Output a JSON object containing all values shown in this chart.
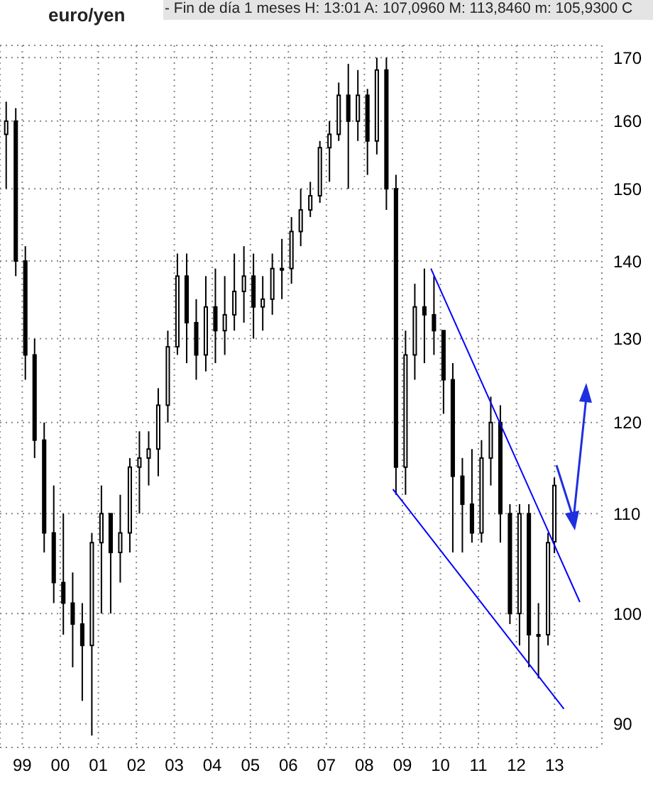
{
  "chart_data": {
    "type": "candlestick",
    "title": "euro/yen",
    "subtitle": "- Fin de día 1 meses H: 13:01 A: 107,0960 M: 113,8460 m: 105,9300 C",
    "log": "y",
    "grid": true,
    "xlim": [
      "1998-06",
      "2014-04"
    ],
    "xticks": [
      {
        "value": "1999",
        "label": "99"
      },
      {
        "value": "2000",
        "label": "00"
      },
      {
        "value": "2001",
        "label": "01"
      },
      {
        "value": "2002",
        "label": "02"
      },
      {
        "value": "2003",
        "label": "03"
      },
      {
        "value": "2004",
        "label": "04"
      },
      {
        "value": "2005",
        "label": "05"
      },
      {
        "value": "2006",
        "label": "06"
      },
      {
        "value": "2007",
        "label": "07"
      },
      {
        "value": "2008",
        "label": "08"
      },
      {
        "value": "2009",
        "label": "09"
      },
      {
        "value": "2010",
        "label": "10"
      },
      {
        "value": "2011",
        "label": "11"
      },
      {
        "value": "2012",
        "label": "12"
      },
      {
        "value": "2013",
        "label": "13"
      }
    ],
    "ylim": [
      88,
      172
    ],
    "yticks": [
      90,
      100,
      110,
      120,
      130,
      140,
      150,
      160,
      170
    ],
    "series": [
      {
        "color": "#000000",
        "x": [
          "1998-08",
          "1998-11",
          "1999-02",
          "1999-05",
          "1999-08",
          "1999-11",
          "2000-02",
          "2000-05",
          "2000-08",
          "2000-11",
          "2001-02",
          "2001-05",
          "2001-08",
          "2001-11",
          "2002-02",
          "2002-05",
          "2002-08",
          "2002-11",
          "2003-02",
          "2003-05",
          "2003-08",
          "2003-11",
          "2004-02",
          "2004-05",
          "2004-08",
          "2004-11",
          "2005-02",
          "2005-05",
          "2005-08",
          "2005-11",
          "2006-02",
          "2006-05",
          "2006-08",
          "2006-11",
          "2007-02",
          "2007-05",
          "2007-08",
          "2007-11",
          "2008-02",
          "2008-05",
          "2008-08",
          "2008-11",
          "2009-02",
          "2009-05",
          "2009-08",
          "2009-11",
          "2010-02",
          "2010-05",
          "2010-08",
          "2010-11",
          "2011-02",
          "2011-05",
          "2011-08",
          "2011-11",
          "2012-02",
          "2012-05",
          "2012-08",
          "2012-11",
          "2013-01"
        ],
        "ohlc": [
          [
            158,
            163,
            150,
            160
          ],
          [
            160,
            162,
            138,
            140
          ],
          [
            140,
            142,
            125,
            128
          ],
          [
            128,
            130,
            116,
            118
          ],
          [
            118,
            120,
            106,
            108
          ],
          [
            108,
            113,
            101,
            103
          ],
          [
            103,
            110,
            98,
            101
          ],
          [
            101,
            104,
            95,
            99
          ],
          [
            99,
            101,
            92,
            97
          ],
          [
            97,
            108,
            89,
            107
          ],
          [
            107,
            113,
            100,
            110
          ],
          [
            110,
            110,
            100,
            106
          ],
          [
            106,
            112,
            103,
            108
          ],
          [
            108,
            116,
            106,
            115
          ],
          [
            115,
            119,
            110,
            116
          ],
          [
            116,
            119,
            113,
            117
          ],
          [
            117,
            124,
            114,
            122
          ],
          [
            122,
            131,
            120,
            129
          ],
          [
            129,
            141,
            128,
            138
          ],
          [
            138,
            141,
            127,
            132
          ],
          [
            132,
            135,
            125,
            128
          ],
          [
            128,
            138,
            126,
            134
          ],
          [
            134,
            139,
            127,
            131
          ],
          [
            131,
            138,
            128,
            133
          ],
          [
            133,
            141,
            131,
            136
          ],
          [
            136,
            142,
            132,
            138
          ],
          [
            138,
            141,
            130,
            134
          ],
          [
            134,
            138,
            131,
            135
          ],
          [
            135,
            141,
            133,
            139
          ],
          [
            139,
            143,
            135,
            139
          ],
          [
            139,
            146,
            137,
            144
          ],
          [
            144,
            150,
            142,
            147
          ],
          [
            147,
            151,
            146,
            149
          ],
          [
            149,
            157,
            148,
            156
          ],
          [
            156,
            160,
            151,
            158
          ],
          [
            158,
            166,
            157,
            164
          ],
          [
            164,
            169,
            150,
            160
          ],
          [
            160,
            168,
            157,
            164
          ],
          [
            164,
            165,
            152,
            157
          ],
          [
            157,
            170,
            155,
            168
          ],
          [
            168,
            170,
            147,
            150
          ],
          [
            150,
            152,
            112,
            115
          ],
          [
            115,
            131,
            112,
            128
          ],
          [
            128,
            137,
            125,
            134
          ],
          [
            134,
            139,
            127,
            133
          ],
          [
            133,
            138,
            128,
            131
          ],
          [
            131,
            131,
            121,
            125
          ],
          [
            125,
            127,
            106,
            114
          ],
          [
            114,
            116,
            106,
            111
          ],
          [
            111,
            117,
            107,
            108
          ],
          [
            108,
            118,
            107,
            116
          ],
          [
            116,
            123,
            113,
            120
          ],
          [
            120,
            122,
            107,
            110
          ],
          [
            110,
            111,
            99,
            100
          ],
          [
            100,
            111,
            97,
            110
          ],
          [
            110,
            111,
            95,
            98
          ],
          [
            98,
            101,
            94,
            98
          ],
          [
            98,
            108,
            97,
            107
          ],
          [
            107.096,
            113.846,
            105.93,
            113
          ]
        ]
      },
      {
        "type": "line",
        "color": "#0000ff",
        "x": [
          "2009-10",
          "2013-09"
        ],
        "values": [
          139,
          101.1
        ]
      },
      {
        "type": "line",
        "color": "#0000ff",
        "x": [
          "2008-10",
          "2013-04"
        ],
        "values": [
          112.6,
          91.3
        ]
      }
    ]
  }
}
